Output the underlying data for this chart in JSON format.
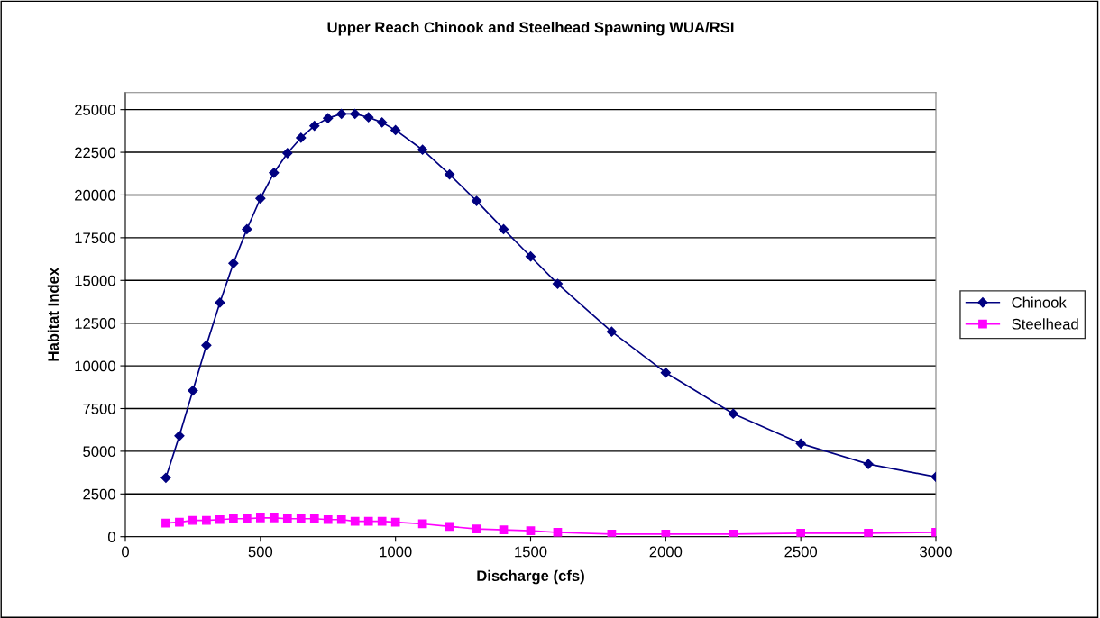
{
  "chart_data": {
    "type": "line",
    "title": "Upper Reach Chinook and Steelhead Spawning WUA/RSI",
    "xlabel": "Discharge (cfs)",
    "ylabel": "Habitat Index",
    "x": [
      150,
      200,
      250,
      300,
      350,
      400,
      450,
      500,
      550,
      600,
      650,
      700,
      750,
      800,
      850,
      900,
      950,
      1000,
      1100,
      1200,
      1300,
      1400,
      1500,
      1600,
      1800,
      2000,
      2250,
      2500,
      2750,
      3000
    ],
    "series": [
      {
        "name": "Chinook",
        "color": "#000080",
        "marker": "diamond",
        "values": [
          3450,
          5900,
          8550,
          11200,
          13700,
          16000,
          18000,
          19800,
          21300,
          22450,
          23350,
          24050,
          24500,
          24750,
          24750,
          24550,
          24250,
          23800,
          22650,
          21200,
          19650,
          18000,
          16400,
          14800,
          12000,
          9600,
          7200,
          5450,
          4250,
          3500
        ]
      },
      {
        "name": "Steelhead",
        "color": "#ff00ff",
        "marker": "square",
        "values": [
          800,
          850,
          950,
          950,
          1000,
          1050,
          1050,
          1100,
          1100,
          1050,
          1050,
          1050,
          1000,
          1000,
          900,
          900,
          900,
          850,
          750,
          600,
          450,
          400,
          350,
          250,
          150,
          150,
          150,
          200,
          200,
          250
        ]
      }
    ],
    "xlim": [
      0,
      3000
    ],
    "xticks": [
      0,
      500,
      1000,
      1500,
      2000,
      2500,
      3000
    ],
    "ylim": [
      0,
      26000
    ],
    "yticks": [
      0,
      2500,
      5000,
      7500,
      10000,
      12500,
      15000,
      17500,
      20000,
      22500,
      25000
    ],
    "grid": "y",
    "legend": "right",
    "line_style": "solid"
  }
}
